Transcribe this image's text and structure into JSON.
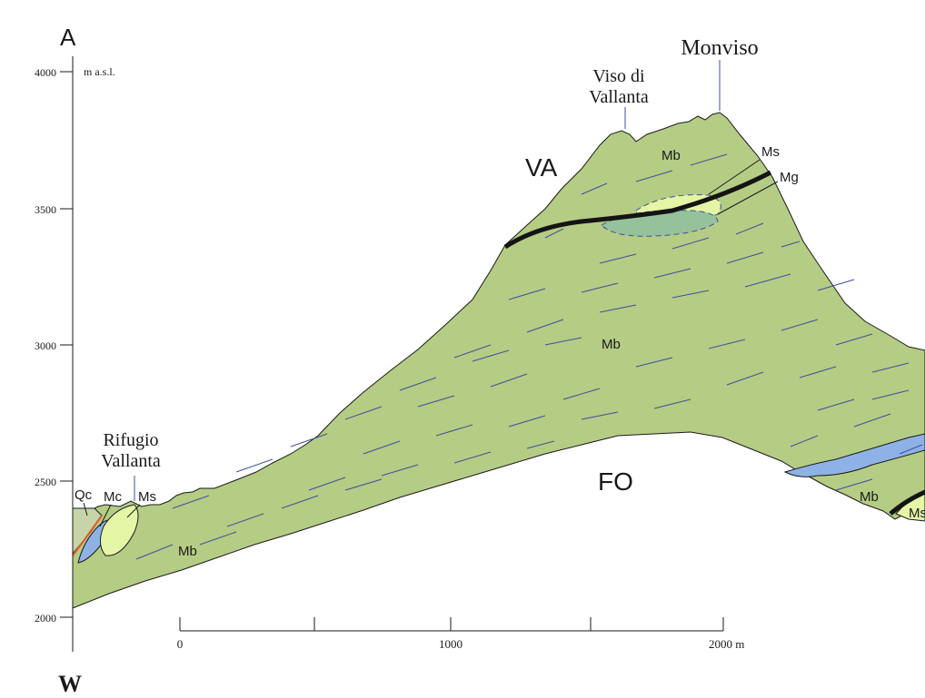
{
  "section": {
    "start_letter": "A",
    "orientation": "W",
    "vertical_axis": {
      "unit": "m a.s.l.",
      "ticks": [
        "4000",
        "3500",
        "3000",
        "2500",
        "2000"
      ]
    },
    "horizontal_scale": {
      "ticks": [
        "0",
        "1000",
        "2000 m"
      ]
    },
    "peaks": {
      "monviso": "Monviso",
      "viso_line1": "Viso di",
      "viso_line2": "Vallanta",
      "rifugio_line1": "Rifugio",
      "rifugio_line2": "Vallanta"
    },
    "units": {
      "va": "VA",
      "fo": "FO",
      "mb_upper": "Mb",
      "mb_mid": "Mb",
      "mb_left": "Mb",
      "mb_right": "Mb",
      "ms_upper": "Ms",
      "mg_upper": "Mg",
      "qc": "Qc",
      "mc": "Mc",
      "ms_left": "Ms",
      "ms_right": "Ms"
    },
    "colors": {
      "metabasite": "#b5cc85",
      "serpentinite_lens": "#e4f5a6",
      "metagabbro": "#95c29a",
      "calcschist": "#8fb2e6",
      "thrust": "#141414",
      "fault": "#e25a2a",
      "foliation": "#3d4f9c"
    }
  }
}
